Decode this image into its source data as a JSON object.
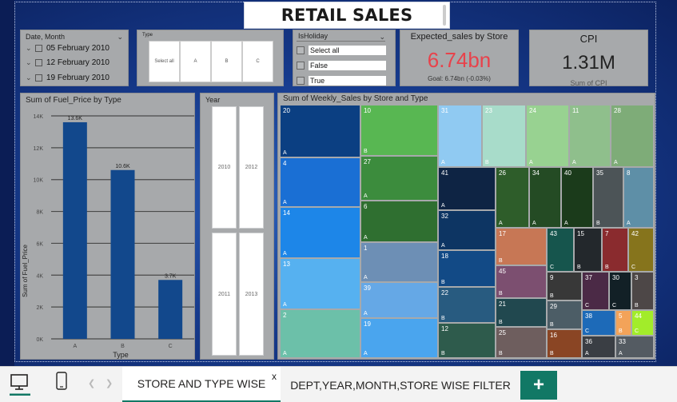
{
  "report": {
    "title": "RETAIL SALES"
  },
  "date_slicer": {
    "title": "Date, Month",
    "items": [
      "05 February 2010",
      "12 February 2010",
      "19 February 2010"
    ]
  },
  "type_slicer": {
    "title": "Type",
    "tiles": [
      "Select all",
      "A",
      "B",
      "C"
    ]
  },
  "holiday_slicer": {
    "title": "IsHoliday",
    "options": [
      "Select all",
      "False",
      "True"
    ]
  },
  "kpi_expected": {
    "title": "Expected_sales by Store",
    "value": "6.74bn",
    "goal": "Goal: 6.74bn (-0.03%)",
    "value_color": "#e8424b"
  },
  "kpi_cpi": {
    "title": "CPI",
    "value": "1.31M",
    "subtitle": "Sum of CPI"
  },
  "year_slicer": {
    "title": "Year",
    "tiles": [
      "2010",
      "2012",
      "2011",
      "2013"
    ]
  },
  "chart_data": [
    {
      "type": "bar",
      "title": "Sum of Fuel_Price by Type",
      "xlabel": "Type",
      "ylabel": "Sum of Fuel_Price",
      "categories": [
        "A",
        "B",
        "C"
      ],
      "values": [
        13600,
        10600,
        3700
      ],
      "data_labels": [
        "13.6K",
        "10.6K",
        "3.7K"
      ],
      "ylim": [
        0,
        14000
      ],
      "yticks": [
        "0K",
        "2K",
        "4K",
        "6K",
        "8K",
        "10K",
        "12K",
        "14K"
      ],
      "grid": true,
      "bar_color": "#12488c"
    },
    {
      "type": "treemap",
      "title": "Sum of Weekly_Sales by Store and Type",
      "cells": [
        {
          "store": "20",
          "type": "A",
          "color": "#0b3f82"
        },
        {
          "store": "4",
          "type": "A",
          "color": "#1a6fd4"
        },
        {
          "store": "14",
          "type": "A",
          "color": "#1d86e8"
        },
        {
          "store": "13",
          "type": "A",
          "color": "#56b1f0"
        },
        {
          "store": "2",
          "type": "A",
          "color": "#6cc0a9"
        },
        {
          "store": "10",
          "type": "B",
          "color": "#58b752"
        },
        {
          "store": "27",
          "type": "A",
          "color": "#3c8c3d"
        },
        {
          "store": "6",
          "type": "A",
          "color": "#2f6f30"
        },
        {
          "store": "1",
          "type": "A",
          "color": "#6d8fb5"
        },
        {
          "store": "39",
          "type": "A",
          "color": "#65a8e6"
        },
        {
          "store": "19",
          "type": "A",
          "color": "#4aa5ee"
        },
        {
          "store": "31",
          "type": "A",
          "color": "#90caf2"
        },
        {
          "store": "23",
          "type": "B",
          "color": "#a8dcca"
        },
        {
          "store": "24",
          "type": "A",
          "color": "#98d291"
        },
        {
          "store": "11",
          "type": "A",
          "color": "#8fbf8c"
        },
        {
          "store": "28",
          "type": "A",
          "color": "#7eac78"
        },
        {
          "store": "41",
          "type": "A",
          "color": "#0e2444"
        },
        {
          "store": "32",
          "type": "A",
          "color": "#0d3563"
        },
        {
          "store": "18",
          "type": "B",
          "color": "#124a86"
        },
        {
          "store": "22",
          "type": "B",
          "color": "#285b80"
        },
        {
          "store": "12",
          "type": "B",
          "color": "#2e5b4c"
        },
        {
          "store": "26",
          "type": "A",
          "color": "#2e5d2a"
        },
        {
          "store": "34",
          "type": "A",
          "color": "#244b24"
        },
        {
          "store": "40",
          "type": "A",
          "color": "#1b3b1b"
        },
        {
          "store": "35",
          "type": "B",
          "color": "#4c5457"
        },
        {
          "store": "8",
          "type": "A",
          "color": "#5e8fa7"
        },
        {
          "store": "17",
          "type": "B",
          "color": "#c77755"
        },
        {
          "store": "45",
          "type": "B",
          "color": "#7c4f70"
        },
        {
          "store": "21",
          "type": "B",
          "color": "#21484f"
        },
        {
          "store": "25",
          "type": "B",
          "color": "#6e5e5e"
        },
        {
          "store": "43",
          "type": "C",
          "color": "#16554d"
        },
        {
          "store": "15",
          "type": "B",
          "color": "#23282c"
        },
        {
          "store": "7",
          "type": "B",
          "color": "#8a2b2e"
        },
        {
          "store": "42",
          "type": "C",
          "color": "#86741c"
        },
        {
          "store": "9",
          "type": "B",
          "color": "#383838"
        },
        {
          "store": "37",
          "type": "C",
          "color": "#4b2a46"
        },
        {
          "store": "30",
          "type": "C",
          "color": "#122026"
        },
        {
          "store": "3",
          "type": "B",
          "color": "#4d4747"
        },
        {
          "store": "29",
          "type": "B",
          "color": "#4c5d66"
        },
        {
          "store": "16",
          "type": "B",
          "color": "#8a4524"
        },
        {
          "store": "38",
          "type": "C",
          "color": "#1d6ab8"
        },
        {
          "store": "5",
          "type": "B",
          "color": "#f3a359"
        },
        {
          "store": "44",
          "type": "C",
          "color": "#a2ec2a"
        },
        {
          "store": "36",
          "type": "A",
          "color": "#3a3e44"
        },
        {
          "store": "33",
          "type": "A",
          "color": "#545b62"
        }
      ]
    }
  ],
  "tabs": {
    "tab1": "STORE AND TYPE WISE",
    "tab1_close": "x",
    "tab2": "DEPT,YEAR,MONTH,STORE WISE FILTER",
    "add": "+"
  },
  "icons": {
    "desktop": "desktop-icon",
    "phone": "phone-icon",
    "prev": "chevron-left-icon",
    "next": "chevron-right-icon"
  }
}
